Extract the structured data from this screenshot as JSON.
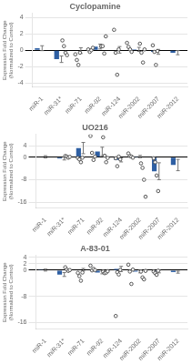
{
  "chart_data": [
    {
      "type": "bar",
      "title": "Cyclopamine",
      "ylabel": "Expression Fold Change\n(Normalized to Control)",
      "categories": [
        "miR-1",
        "miR-31*",
        "miR-71",
        "miR-92",
        "miR-124",
        "miR-2002",
        "miR-2007",
        "miR-2012"
      ],
      "values": [
        0.25,
        -1.1,
        -0.05,
        0.45,
        0.05,
        0.1,
        -0.2,
        -0.3
      ],
      "errors_lo": [
        0.3,
        0.4,
        0.35,
        0.3,
        0.4,
        0.25,
        0.3,
        0.25
      ],
      "errors_hi": [
        0.3,
        0.4,
        0.35,
        0.3,
        0.4,
        0.25,
        0.3,
        0.25
      ],
      "points": [
        [
          1.2,
          0.5,
          -0.3,
          -0.6
        ],
        [
          -0.5,
          -1.2,
          -1.8,
          -0.3
        ],
        [
          0.1,
          -0.2,
          0.0,
          0.3
        ],
        [
          0.5,
          0.5,
          -0.4,
          1.7
        ],
        [
          2.5,
          -0.3,
          -3.0,
          0.1
        ],
        [
          0.9,
          0.4,
          0.1,
          -0.2
        ],
        [
          0.8,
          -0.3,
          -1.5,
          0.1
        ],
        [
          0.6,
          -0.2,
          -1.8,
          -0.1
        ]
      ],
      "color": "#2e5fa3",
      "ylim": [
        -4.5,
        4.5
      ],
      "yticks": [
        -4,
        -2,
        0,
        2,
        4
      ],
      "grid": true
    },
    {
      "type": "bar",
      "title": "UO216",
      "ylabel": "Expression Fold Change\n(Normalized to Control)",
      "categories": [
        "miR-1",
        "miR-31*",
        "miR-71",
        "miR-92",
        "miR-124",
        "miR-2002",
        "miR-2007",
        "miR-2012"
      ],
      "values": [
        0.1,
        -0.5,
        3.2,
        2.0,
        -1.0,
        0.2,
        -5.0,
        -2.8
      ],
      "errors_lo": [
        0.4,
        0.5,
        2.0,
        1.5,
        0.7,
        0.4,
        3.0,
        2.0
      ],
      "errors_hi": [
        0.4,
        0.5,
        2.0,
        1.5,
        0.7,
        0.4,
        3.0,
        2.0
      ],
      "points": [
        [
          0.4,
          0.2,
          -0.2,
          0.1
        ],
        [
          -0.3,
          -0.8,
          -1.8,
          -0.2
        ],
        [
          7.5,
          1.5,
          -1.0,
          0.2
        ],
        [
          7.0,
          0.5,
          -1.8,
          -0.3
        ],
        [
          -0.4,
          -3.2,
          0.2,
          -0.8
        ],
        [
          1.3,
          0.4,
          0.2,
          -0.2
        ],
        [
          -2.2,
          -3.8,
          -8.0,
          -14.0
        ],
        [
          -0.4,
          -1.8,
          -6.5,
          -12.0
        ]
      ],
      "color": "#2e5fa3",
      "ylim": [
        -18,
        8
      ],
      "yticks": [
        -16,
        -8,
        0,
        4
      ],
      "grid": true
    },
    {
      "type": "bar",
      "title": "A-83-01",
      "ylabel": "Expression Fold Change\n(Normalized to Control)",
      "categories": [
        "miR-1",
        "miR-31*",
        "miR-71",
        "miR-92",
        "miR-124",
        "miR-2002",
        "miR-2007",
        "miR-2012"
      ],
      "values": [
        0.05,
        -1.3,
        0.15,
        -0.7,
        0.4,
        -0.4,
        -0.4,
        -0.6
      ],
      "errors_lo": [
        0.3,
        0.6,
        0.4,
        0.4,
        0.8,
        0.4,
        0.4,
        0.3
      ],
      "errors_hi": [
        0.3,
        0.6,
        0.4,
        0.4,
        0.8,
        0.4,
        0.4,
        0.3
      ],
      "points": [
        [
          0.9,
          0.2,
          -0.2,
          0.05
        ],
        [
          -0.8,
          -1.8,
          -3.2,
          -0.7
        ],
        [
          1.4,
          -0.05,
          0.4,
          0.05
        ],
        [
          -0.4,
          -0.9,
          -0.7,
          -0.3
        ],
        [
          -14.0,
          -0.6,
          -1.3,
          0.1
        ],
        [
          1.7,
          -0.4,
          -4.2,
          0.2
        ],
        [
          -0.4,
          -2.2,
          -2.8,
          -0.2
        ],
        [
          -0.4,
          -0.9,
          -1.4,
          -0.15
        ]
      ],
      "color": "#2e5fa3",
      "ylim": [
        -18,
        4.5
      ],
      "yticks": [
        -16,
        -8,
        0,
        2,
        4
      ],
      "grid": true
    }
  ]
}
